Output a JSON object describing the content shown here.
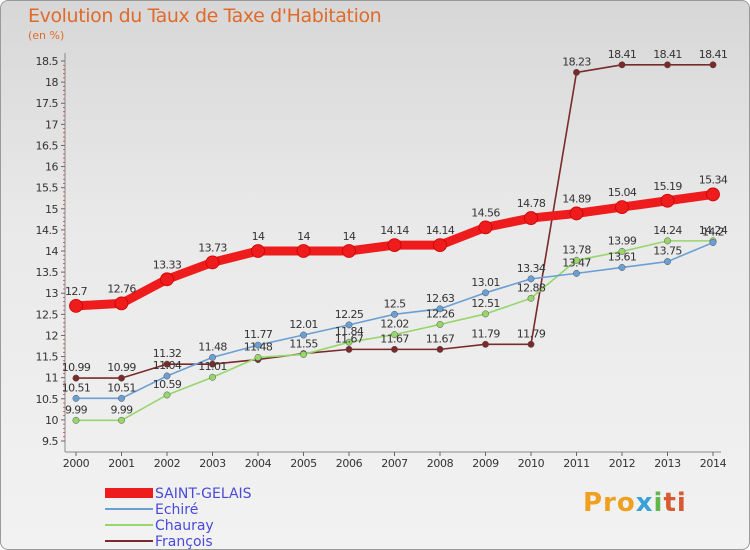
{
  "chart_data": {
    "type": "line",
    "title": "Evolution du Taux de Taxe d'Habitation",
    "subtitle": "(en %)",
    "x": [
      "2000",
      "2001",
      "2002",
      "2003",
      "2004",
      "2005",
      "2006",
      "2007",
      "2008",
      "2009",
      "2010",
      "2011",
      "2012",
      "2013",
      "2014"
    ],
    "ylim": [
      9.5,
      18.5
    ],
    "yticks": [
      "9.5",
      "10",
      "10.5",
      "11",
      "11.5",
      "12",
      "12.5",
      "13",
      "13.5",
      "14",
      "14.5",
      "15",
      "15.5",
      "16",
      "16.5",
      "17",
      "17.5",
      "18",
      "18.5"
    ],
    "grid": false,
    "legend_position": "bottom-left",
    "series": [
      {
        "name": "SAINT-GELAIS",
        "color": "#ee1c1c",
        "values": [
          12.7,
          12.76,
          13.33,
          13.73,
          14,
          14,
          14,
          14.14,
          14.14,
          14.56,
          14.78,
          14.89,
          15.04,
          15.19,
          15.34
        ],
        "labels": [
          "12.7",
          "12.76",
          "13.33",
          "13.73",
          "14",
          "14",
          "14",
          "14.14",
          "14.14",
          "14.56",
          "14.78",
          "14.89",
          "15.04",
          "15.19",
          "15.34"
        ]
      },
      {
        "name": "Echiré",
        "color": "#6a9fd4",
        "values": [
          10.51,
          10.51,
          11.04,
          11.48,
          11.77,
          12.01,
          12.25,
          12.5,
          12.63,
          13.01,
          13.34,
          13.47,
          13.61,
          13.75,
          14.2
        ],
        "labels": [
          "10.51",
          "10.51",
          "11.04",
          "11.48",
          "11.77",
          "12.01",
          "12.25",
          "12.5",
          "12.63",
          "13.01",
          "13.34",
          "13.47",
          "13.61",
          "13.75",
          "14.2"
        ]
      },
      {
        "name": "Chauray",
        "color": "#96d66a",
        "values": [
          9.99,
          9.99,
          10.59,
          11.01,
          11.48,
          11.55,
          11.84,
          12.02,
          12.26,
          12.51,
          12.88,
          13.78,
          13.99,
          14.24,
          14.24
        ],
        "labels": [
          "9.99",
          "9.99",
          "10.59",
          "11.01",
          "11.48",
          "11.55",
          "11.84",
          "12.02",
          "12.26",
          "12.51",
          "12.88",
          "13.78",
          "13.99",
          "14.24",
          "14.24"
        ]
      },
      {
        "name": "François",
        "color": "#7a2a2a",
        "values": [
          10.99,
          10.99,
          11.32,
          11.32,
          11.43,
          11.57,
          11.67,
          11.67,
          11.67,
          11.79,
          11.79,
          18.23,
          18.41,
          18.41,
          18.41
        ],
        "labels": [
          "10.99",
          "10.99",
          "11.32",
          "",
          "",
          "",
          "11.67",
          "11.67",
          "11.67",
          "11.79",
          "11.79",
          "18.23",
          "18.41",
          "18.41",
          "18.41"
        ]
      }
    ]
  },
  "brand": {
    "p1": "Pro",
    "p2": "x",
    "p3": "i",
    "p4": "ti"
  }
}
